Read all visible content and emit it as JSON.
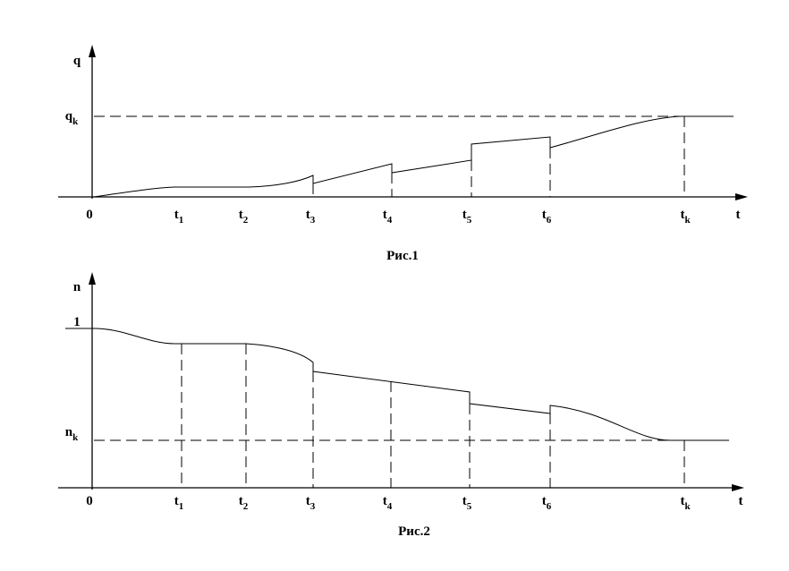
{
  "figures": [
    {
      "caption": "Рис.1",
      "y_label": "q",
      "x_label": "t",
      "level_label": {
        "base": "q",
        "sub": "k"
      },
      "ticks": [
        {
          "base": "0"
        },
        {
          "base": "t",
          "sub": "1"
        },
        {
          "base": "t",
          "sub": "2"
        },
        {
          "base": "t",
          "sub": "3"
        },
        {
          "base": "t",
          "sub": "4"
        },
        {
          "base": "t",
          "sub": "5"
        },
        {
          "base": "t",
          "sub": "6"
        },
        {
          "base": "t",
          "sub": "k"
        }
      ]
    },
    {
      "caption": "Рис.2",
      "y_label": "n",
      "x_label": "t",
      "top_label": "1",
      "level_label": {
        "base": "n",
        "sub": "k"
      },
      "ticks": [
        {
          "base": "0"
        },
        {
          "base": "t",
          "sub": "1"
        },
        {
          "base": "t",
          "sub": "2"
        },
        {
          "base": "t",
          "sub": "3"
        },
        {
          "base": "t",
          "sub": "4"
        },
        {
          "base": "t",
          "sub": "5"
        },
        {
          "base": "t",
          "sub": "6"
        },
        {
          "base": "t",
          "sub": "k"
        }
      ]
    }
  ]
}
